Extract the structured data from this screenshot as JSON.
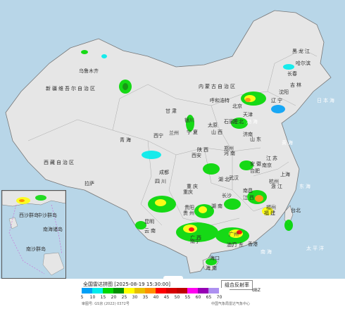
{
  "legend": {
    "title": "全国雷达拼图 [2025-08-19 15:30:00]",
    "product": "组合反射率",
    "unit": "dBZ",
    "ticks": [
      "5",
      "10",
      "15",
      "20",
      "25",
      "30",
      "35",
      "40",
      "45",
      "50",
      "55",
      "60",
      "65",
      "70"
    ],
    "colors": [
      "#01a0f6",
      "#00ecec",
      "#00d800",
      "#019000",
      "#ffff00",
      "#e7c000",
      "#ff9000",
      "#ff0000",
      "#d60000",
      "#c00000",
      "#ff00f0",
      "#9600b4",
      "#ad90f0",
      "#ffffff"
    ],
    "review_no": "审图号: GS京 (2022) 0372号",
    "agency": "中国气象局雷达气象中心"
  },
  "map": {
    "regions": [
      "新疆维吾尔自治区",
      "西藏自治区",
      "青海",
      "内蒙古自治区",
      "黑龙江",
      "吉林",
      "辽宁",
      "甘肃",
      "四川",
      "云南",
      "广西",
      "贵州",
      "湖南",
      "江西",
      "安徽",
      "江苏",
      "浙江",
      "福建",
      "广东",
      "湖北",
      "河南",
      "山东",
      "河北",
      "山西",
      "陕西",
      "宁夏",
      "重庆",
      "海南"
    ],
    "cities": [
      "乌鲁木齐",
      "哈尔滨",
      "长春",
      "沈阳",
      "北京",
      "天津",
      "石家庄",
      "太原",
      "呼和浩特",
      "银川",
      "兰州",
      "西宁",
      "拉萨",
      "成都",
      "西安",
      "郑州",
      "济南",
      "南京",
      "上海",
      "合肥",
      "武汉",
      "长沙",
      "南昌",
      "杭州",
      "福州",
      "台北",
      "广州",
      "南宁",
      "贵阳",
      "昆明",
      "海口",
      "香港",
      "澳门",
      "重庆"
    ],
    "seas": [
      "黄海",
      "东海",
      "南海",
      "渤海",
      "日本海",
      "太平洋"
    ],
    "inset_labels": [
      "南海诸岛",
      "中沙群岛",
      "西沙群岛",
      "南沙群岛"
    ]
  }
}
